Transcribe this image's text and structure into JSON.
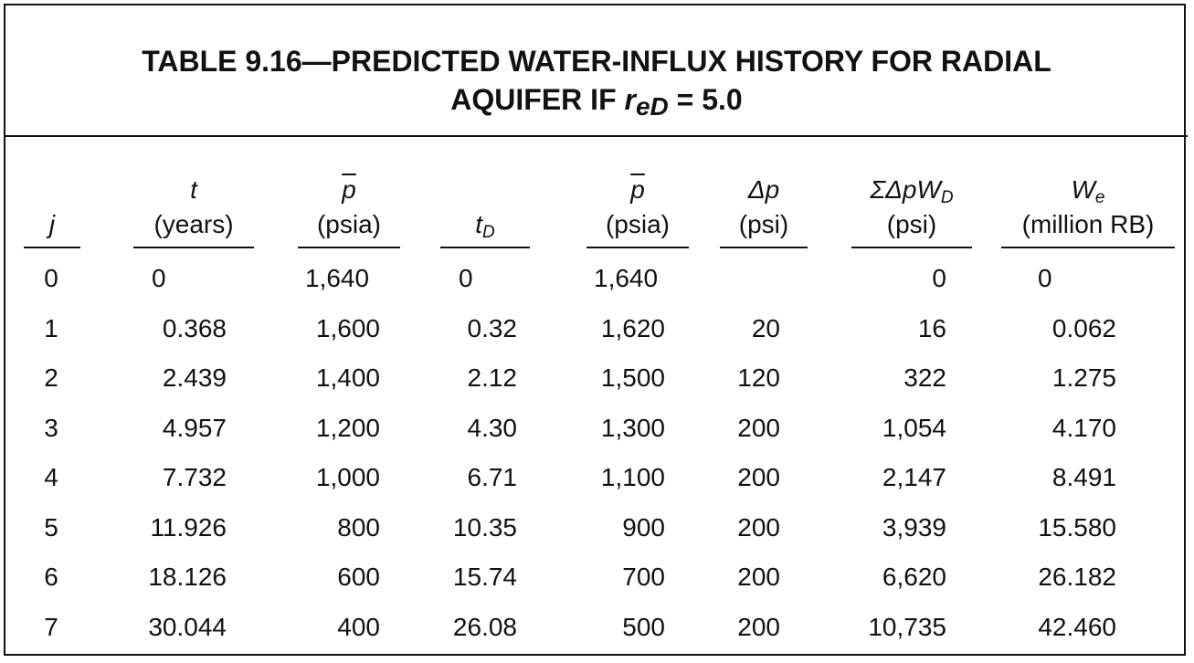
{
  "title": {
    "line1": "TABLE 9.16—PREDICTED WATER-INFLUX HISTORY FOR RADIAL",
    "line2_prefix": "AQUIFER IF ",
    "symbol": "r",
    "symbol_sub": "eD",
    "line2_suffix": " = 5.0"
  },
  "headers": [
    {
      "top": "",
      "bottom": "j"
    },
    {
      "top": "t",
      "bottom": "(years)"
    },
    {
      "top": "p",
      "bottom": "(psia)"
    },
    {
      "top": "",
      "bottom": "t",
      "bottom_sub": "D"
    },
    {
      "top": "p",
      "bottom": "(psia)"
    },
    {
      "top": "Δp",
      "bottom": "(psi)"
    },
    {
      "top": "ΣΔpW",
      "top_sub": "D",
      "bottom": "(psi)"
    },
    {
      "top": "W",
      "top_sub": "e",
      "bottom": "(million RB)"
    }
  ],
  "rows": [
    {
      "j": "0",
      "t": "0",
      "p": "1,640",
      "tD": "0",
      "pavg": "1,640",
      "dp": "",
      "sum": "0",
      "we": "0"
    },
    {
      "j": "1",
      "t": "0.368",
      "p": "1,600",
      "tD": "0.32",
      "pavg": "1,620",
      "dp": "20",
      "sum": "16",
      "we": "0.062"
    },
    {
      "j": "2",
      "t": "2.439",
      "p": "1,400",
      "tD": "2.12",
      "pavg": "1,500",
      "dp": "120",
      "sum": "322",
      "we": "1.275"
    },
    {
      "j": "3",
      "t": "4.957",
      "p": "1,200",
      "tD": "4.30",
      "pavg": "1,300",
      "dp": "200",
      "sum": "1,054",
      "we": "4.170"
    },
    {
      "j": "4",
      "t": "7.732",
      "p": "1,000",
      "tD": "6.71",
      "pavg": "1,100",
      "dp": "200",
      "sum": "2,147",
      "we": "8.491"
    },
    {
      "j": "5",
      "t": "11.926",
      "p": "800",
      "tD": "10.35",
      "pavg": "900",
      "dp": "200",
      "sum": "3,939",
      "we": "15.580"
    },
    {
      "j": "6",
      "t": "18.126",
      "p": "600",
      "tD": "15.74",
      "pavg": "700",
      "dp": "200",
      "sum": "6,620",
      "we": "26.182"
    },
    {
      "j": "7",
      "t": "30.044",
      "p": "400",
      "tD": "26.08",
      "pavg": "500",
      "dp": "200",
      "sum": "10,735",
      "we": "42.460"
    }
  ]
}
